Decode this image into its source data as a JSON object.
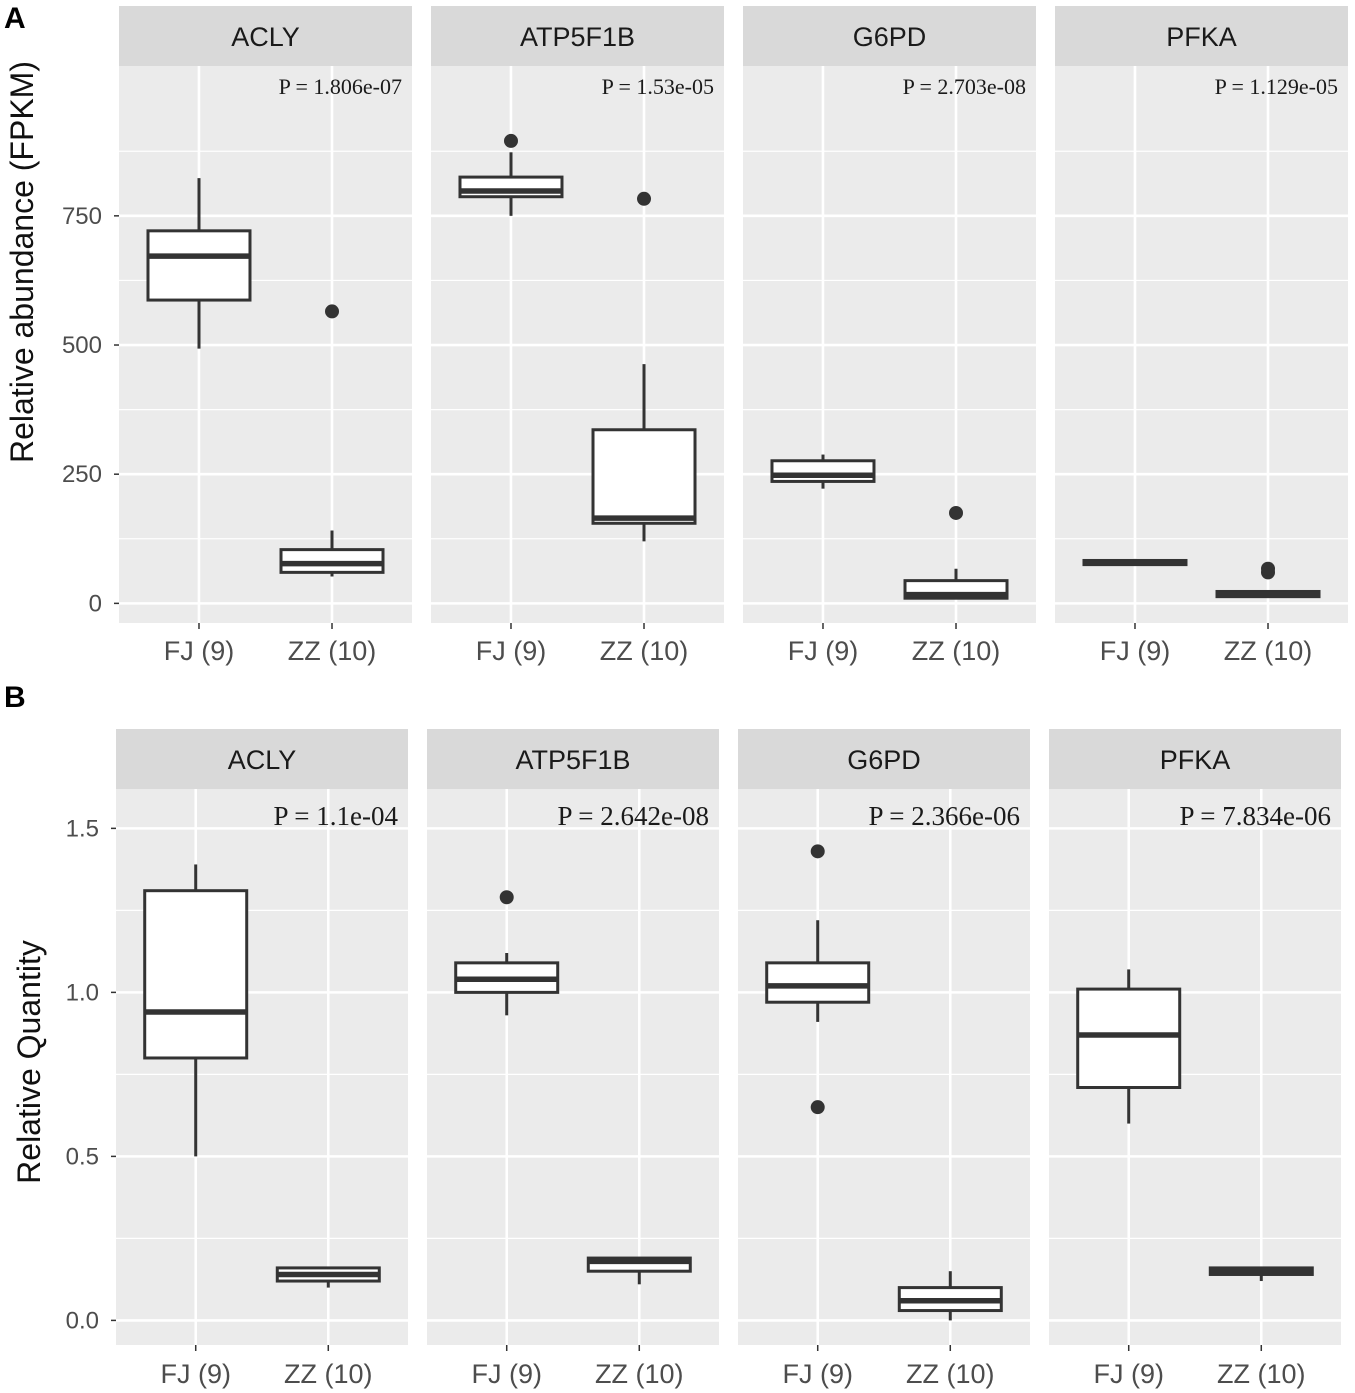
{
  "colors": {
    "panel_bg": "#ebebeb",
    "strip_bg": "#d9d9d9",
    "grid": "#ffffff",
    "box_fill": "#ffffff",
    "box_stroke": "#333333",
    "tick_text": "#4d4d4d"
  },
  "chart_data": [
    {
      "type": "box",
      "panel_label": "A",
      "ylabel": "Relative abundance (FPKM)",
      "ylim": [
        -38,
        1040
      ],
      "yticks": [
        0,
        250,
        500,
        750
      ],
      "ytick_labels": [
        "0",
        "250",
        "500",
        "750"
      ],
      "categories": [
        "FJ (9)",
        "ZZ (10)"
      ],
      "facets": [
        {
          "title": "ACLY",
          "pvalue": "P = 1.806e-07",
          "boxes": [
            {
              "group": "FJ (9)",
              "whisker_low": 493,
              "q1": 587,
              "median": 672,
              "q3": 721,
              "whisker_high": 823,
              "outliers": []
            },
            {
              "group": "ZZ (10)",
              "whisker_low": 52,
              "q1": 60,
              "median": 77,
              "q3": 104,
              "whisker_high": 141,
              "outliers": [
                565
              ]
            }
          ]
        },
        {
          "title": "ATP5F1B",
          "pvalue": "P = 1.53e-05",
          "boxes": [
            {
              "group": "FJ (9)",
              "whisker_low": 750,
              "q1": 787,
              "median": 798,
              "q3": 825,
              "whisker_high": 873,
              "outliers": [
                895
              ]
            },
            {
              "group": "ZZ (10)",
              "whisker_low": 120,
              "q1": 155,
              "median": 165,
              "q3": 336,
              "whisker_high": 463,
              "outliers": [
                783
              ]
            }
          ]
        },
        {
          "title": "G6PD",
          "pvalue": "P = 2.703e-08",
          "boxes": [
            {
              "group": "FJ (9)",
              "whisker_low": 222,
              "q1": 236,
              "median": 248,
              "q3": 276,
              "whisker_high": 288,
              "outliers": []
            },
            {
              "group": "ZZ (10)",
              "whisker_low": 8,
              "q1": 10,
              "median": 17,
              "q3": 44,
              "whisker_high": 67,
              "outliers": [
                175
              ]
            }
          ]
        },
        {
          "title": "PFKA",
          "pvalue": "P = 1.129e-05",
          "boxes": [
            {
              "group": "FJ (9)",
              "whisker_low": 75,
              "q1": 75,
              "median": 78,
              "q3": 83,
              "whisker_high": 86,
              "outliers": []
            },
            {
              "group": "ZZ (10)",
              "whisker_low": 13,
              "q1": 13,
              "median": 17,
              "q3": 23,
              "whisker_high": 25,
              "outliers": [
                60,
                67
              ]
            }
          ]
        }
      ]
    },
    {
      "type": "box",
      "panel_label": "B",
      "ylabel": "Relative Quantity",
      "ylim": [
        -0.075,
        1.62
      ],
      "yticks": [
        0.0,
        0.5,
        1.0,
        1.5
      ],
      "ytick_labels": [
        "0.0",
        "0.5",
        "1.0",
        "1.5"
      ],
      "categories": [
        "FJ (9)",
        "ZZ (10)"
      ],
      "facets": [
        {
          "title": "ACLY",
          "pvalue": "P = 1.1e-04",
          "boxes": [
            {
              "group": "FJ (9)",
              "whisker_low": 0.5,
              "q1": 0.8,
              "median": 0.94,
              "q3": 1.31,
              "whisker_high": 1.39,
              "outliers": []
            },
            {
              "group": "ZZ (10)",
              "whisker_low": 0.1,
              "q1": 0.12,
              "median": 0.14,
              "q3": 0.16,
              "whisker_high": 0.16,
              "outliers": []
            }
          ]
        },
        {
          "title": "ATP5F1B",
          "pvalue": "P = 2.642e-08",
          "boxes": [
            {
              "group": "FJ (9)",
              "whisker_low": 0.93,
              "q1": 1.0,
              "median": 1.04,
              "q3": 1.09,
              "whisker_high": 1.12,
              "outliers": [
                1.29
              ]
            },
            {
              "group": "ZZ (10)",
              "whisker_low": 0.11,
              "q1": 0.15,
              "median": 0.18,
              "q3": 0.19,
              "whisker_high": 0.19,
              "outliers": []
            }
          ]
        },
        {
          "title": "G6PD",
          "pvalue": "P = 2.366e-06",
          "boxes": [
            {
              "group": "FJ (9)",
              "whisker_low": 0.91,
              "q1": 0.97,
              "median": 1.02,
              "q3": 1.09,
              "whisker_high": 1.22,
              "outliers": [
                1.43,
                0.65
              ]
            },
            {
              "group": "ZZ (10)",
              "whisker_low": 0.0,
              "q1": 0.03,
              "median": 0.06,
              "q3": 0.1,
              "whisker_high": 0.15,
              "outliers": []
            }
          ]
        },
        {
          "title": "PFKA",
          "pvalue": "P = 7.834e-06",
          "boxes": [
            {
              "group": "FJ (9)",
              "whisker_low": 0.6,
              "q1": 0.71,
              "median": 0.87,
              "q3": 1.01,
              "whisker_high": 1.07,
              "outliers": []
            },
            {
              "group": "ZZ (10)",
              "whisker_low": 0.12,
              "q1": 0.14,
              "median": 0.15,
              "q3": 0.16,
              "whisker_high": 0.16,
              "outliers": []
            }
          ]
        }
      ]
    }
  ]
}
